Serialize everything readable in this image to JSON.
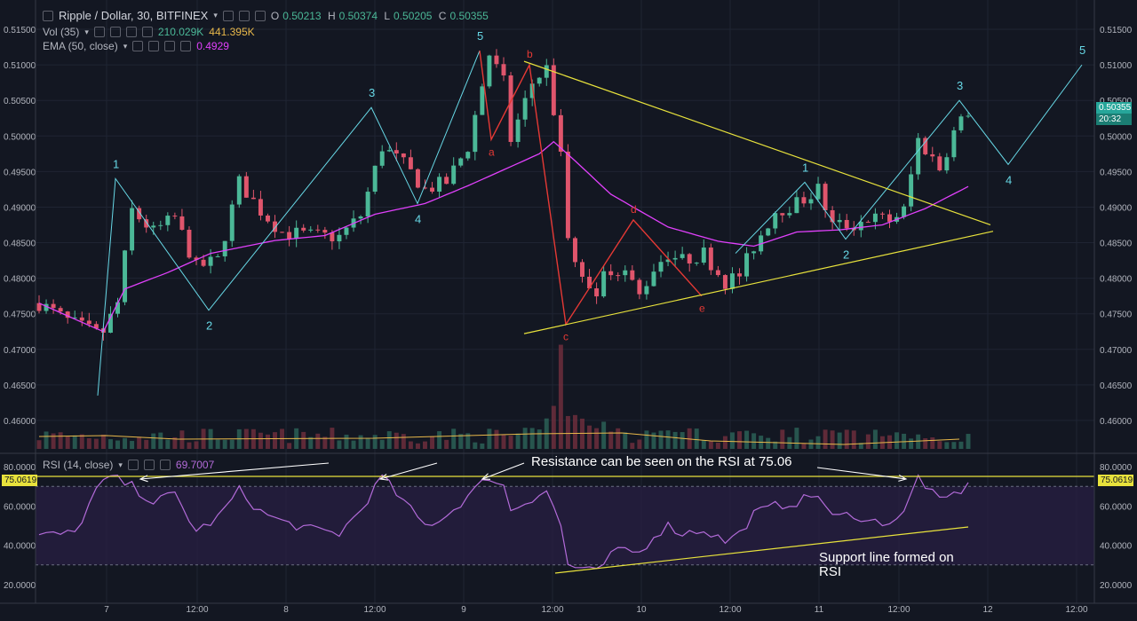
{
  "header": {
    "symbol": "Ripple / Dollar, 30, BITFINEX",
    "open_label": "O",
    "open": "0.50213",
    "high_label": "H",
    "high": "0.50374",
    "low_label": "L",
    "low": "0.50205",
    "close_label": "C",
    "close": "0.50355",
    "vol_label": "Vol (35)",
    "vol_1": "210.029K",
    "vol_2": "441.395K",
    "ema_label": "EMA (50, close)",
    "ema_value": "0.4929",
    "rsi_label": "RSI (14, close)",
    "rsi_value": "69.7007"
  },
  "price_tags": {
    "last_price": "0.50355",
    "countdown": "20:32",
    "rsi_level": "75.0619"
  },
  "annotations": {
    "rsi_resistance": "Resistance can be seen on the RSI at 75.06",
    "rsi_support": "Support line formed on RSI"
  },
  "colors": {
    "background": "#131722",
    "up": "#4bb897",
    "down": "#e0556c",
    "ema": "#e040fb",
    "rsi": "#b36bd9",
    "trendline": "#e8e23c",
    "wave": "#67d8e6",
    "abcde": "#e53935"
  },
  "chart_data": [
    {
      "type": "candlestick",
      "title": "Ripple / Dollar, 30, BITFINEX",
      "ylim": [
        0.456,
        0.5185
      ],
      "y_ticks": [
        "0.51500",
        "0.51000",
        "0.50500",
        "0.50000",
        "0.49500",
        "0.49000",
        "0.48500",
        "0.48000",
        "0.47500",
        "0.47000",
        "0.46500",
        "0.46000"
      ],
      "x_ticks": [
        "7",
        "12:00",
        "8",
        "12:00",
        "9",
        "12:00",
        "10",
        "12:00",
        "11",
        "12:00",
        "12",
        "12:00"
      ],
      "keypoints": [
        [
          0,
          0.4765
        ],
        [
          4,
          0.474
        ],
        [
          8,
          0.4722
        ],
        [
          9,
          0.4725
        ],
        [
          11,
          0.4765
        ],
        [
          13,
          0.4895
        ],
        [
          16,
          0.4865
        ],
        [
          19,
          0.4885
        ],
        [
          22,
          0.4815
        ],
        [
          25,
          0.4825
        ],
        [
          28,
          0.4935
        ],
        [
          31,
          0.4895
        ],
        [
          34,
          0.4865
        ],
        [
          38,
          0.486
        ],
        [
          42,
          0.4858
        ],
        [
          45,
          0.4888
        ],
        [
          48,
          0.4985
        ],
        [
          51,
          0.496
        ],
        [
          54,
          0.4925
        ],
        [
          57,
          0.4935
        ],
        [
          60,
          0.4985
        ],
        [
          63,
          0.5115
        ],
        [
          65,
          0.5075
        ],
        [
          66,
          0.4995
        ],
        [
          69,
          0.5075
        ],
        [
          71,
          0.5095
        ],
        [
          73,
          0.4975
        ],
        [
          74,
          0.4855
        ],
        [
          76,
          0.4795
        ],
        [
          78,
          0.4785
        ],
        [
          80,
          0.4815
        ],
        [
          82,
          0.481
        ],
        [
          84,
          0.4775
        ],
        [
          86,
          0.4815
        ],
        [
          88,
          0.4835
        ],
        [
          90,
          0.4825
        ],
        [
          93,
          0.4835
        ],
        [
          96,
          0.4795
        ],
        [
          98,
          0.4805
        ],
        [
          100,
          0.4845
        ],
        [
          103,
          0.4895
        ],
        [
          106,
          0.4905
        ],
        [
          109,
          0.4925
        ],
        [
          111,
          0.4875
        ],
        [
          114,
          0.4875
        ],
        [
          116,
          0.4885
        ],
        [
          119,
          0.4882
        ],
        [
          121,
          0.4895
        ],
        [
          123,
          0.4995
        ],
        [
          126,
          0.4955
        ],
        [
          128,
          0.5005
        ],
        [
          130,
          0.5035
        ]
      ],
      "ema_keypoints": [
        [
          0,
          0.4765
        ],
        [
          6,
          0.4738
        ],
        [
          9,
          0.4725
        ],
        [
          12,
          0.4785
        ],
        [
          18,
          0.4808
        ],
        [
          24,
          0.4835
        ],
        [
          33,
          0.4853
        ],
        [
          40,
          0.486
        ],
        [
          47,
          0.489
        ],
        [
          54,
          0.4905
        ],
        [
          60,
          0.493
        ],
        [
          64,
          0.4948
        ],
        [
          70,
          0.4975
        ],
        [
          72,
          0.4992
        ],
        [
          75,
          0.4965
        ],
        [
          80,
          0.4918
        ],
        [
          88,
          0.4872
        ],
        [
          95,
          0.4852
        ],
        [
          100,
          0.4845
        ],
        [
          106,
          0.4865
        ],
        [
          112,
          0.4868
        ],
        [
          118,
          0.4875
        ],
        [
          124,
          0.4898
        ],
        [
          130,
          0.4929
        ]
      ],
      "waves_cyan": {
        "points": [
          [
            0.4635,
            "1"
          ],
          [
            0.494,
            "1"
          ],
          [
            0.4755,
            "2"
          ],
          [
            0.504,
            "3"
          ],
          [
            0.4905,
            "4"
          ],
          [
            0.512,
            "5"
          ]
        ],
        "projection": [
          [
            0.4935,
            "1"
          ],
          [
            0.4855,
            "2"
          ],
          [
            0.505,
            "3"
          ],
          [
            0.496,
            "4"
          ],
          [
            0.51,
            "5"
          ]
        ]
      },
      "waves_red": [
        [
          0.512,
          ""
        ],
        [
          0.4995,
          "a"
        ],
        [
          0.51,
          "b"
        ],
        [
          0.4735,
          "c"
        ],
        [
          0.4882,
          "d"
        ],
        [
          0.4775,
          "e"
        ]
      ],
      "triangle_upper": [
        [
          0.5105
        ],
        [
          0.4875
        ]
      ],
      "triangle_lower": [
        [
          0.4722
        ],
        [
          0.4866
        ]
      ]
    },
    {
      "type": "line",
      "title": "RSI (14, close)",
      "ylim": [
        15,
        85
      ],
      "y_ticks": [
        "80.0000",
        "60.0000",
        "40.0000",
        "20.0000"
      ],
      "resistance_level": 75.0619,
      "band": [
        70,
        30
      ],
      "keypoints": [
        [
          0,
          45
        ],
        [
          5,
          46
        ],
        [
          8,
          68
        ],
        [
          10,
          75
        ],
        [
          13,
          70
        ],
        [
          16,
          62
        ],
        [
          19,
          66
        ],
        [
          22,
          47
        ],
        [
          25,
          54
        ],
        [
          28,
          68
        ],
        [
          31,
          57
        ],
        [
          34,
          52
        ],
        [
          38,
          48
        ],
        [
          42,
          46
        ],
        [
          45,
          58
        ],
        [
          48,
          75
        ],
        [
          51,
          62
        ],
        [
          54,
          50
        ],
        [
          57,
          55
        ],
        [
          60,
          65
        ],
        [
          63,
          75
        ],
        [
          65,
          70
        ],
        [
          66,
          58
        ],
        [
          69,
          64
        ],
        [
          71,
          68
        ],
        [
          73,
          50
        ],
        [
          74,
          30
        ],
        [
          76,
          28
        ],
        [
          78,
          26
        ],
        [
          80,
          35
        ],
        [
          82,
          38
        ],
        [
          84,
          36
        ],
        [
          86,
          45
        ],
        [
          88,
          50
        ],
        [
          90,
          46
        ],
        [
          93,
          48
        ],
        [
          96,
          42
        ],
        [
          98,
          46
        ],
        [
          100,
          56
        ],
        [
          103,
          60
        ],
        [
          106,
          62
        ],
        [
          109,
          66
        ],
        [
          111,
          54
        ],
        [
          114,
          56
        ],
        [
          116,
          52
        ],
        [
          119,
          52
        ],
        [
          121,
          56
        ],
        [
          123,
          75
        ],
        [
          126,
          62
        ],
        [
          128,
          66
        ],
        [
          130,
          70
        ]
      ]
    }
  ]
}
